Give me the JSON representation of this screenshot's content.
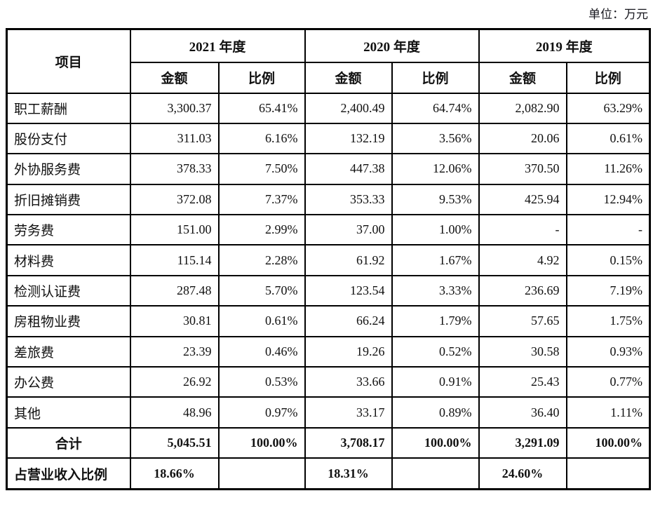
{
  "unit_label": "单位：万元",
  "table": {
    "item_header": "项目",
    "year_headers": [
      "2021 年度",
      "2020 年度",
      "2019 年度"
    ],
    "sub_headers": [
      "金额",
      "比例",
      "金额",
      "比例",
      "金额",
      "比例"
    ],
    "rows": [
      {
        "type": "normal",
        "label": "职工薪酬",
        "values": [
          "3,300.37",
          "65.41%",
          "2,400.49",
          "64.74%",
          "2,082.90",
          "63.29%"
        ]
      },
      {
        "type": "normal",
        "label": "股份支付",
        "values": [
          "311.03",
          "6.16%",
          "132.19",
          "3.56%",
          "20.06",
          "0.61%"
        ]
      },
      {
        "type": "normal",
        "label": "外协服务费",
        "values": [
          "378.33",
          "7.50%",
          "447.38",
          "12.06%",
          "370.50",
          "11.26%"
        ]
      },
      {
        "type": "normal",
        "label": "折旧摊销费",
        "values": [
          "372.08",
          "7.37%",
          "353.33",
          "9.53%",
          "425.94",
          "12.94%"
        ]
      },
      {
        "type": "normal",
        "label": "劳务费",
        "values": [
          "151.00",
          "2.99%",
          "37.00",
          "1.00%",
          "-",
          "-"
        ]
      },
      {
        "type": "normal",
        "label": "材料费",
        "values": [
          "115.14",
          "2.28%",
          "61.92",
          "1.67%",
          "4.92",
          "0.15%"
        ]
      },
      {
        "type": "normal",
        "label": "检测认证费",
        "values": [
          "287.48",
          "5.70%",
          "123.54",
          "3.33%",
          "236.69",
          "7.19%"
        ]
      },
      {
        "type": "normal",
        "label": "房租物业费",
        "values": [
          "30.81",
          "0.61%",
          "66.24",
          "1.79%",
          "57.65",
          "1.75%"
        ]
      },
      {
        "type": "normal",
        "label": "差旅费",
        "values": [
          "23.39",
          "0.46%",
          "19.26",
          "0.52%",
          "30.58",
          "0.93%"
        ]
      },
      {
        "type": "normal",
        "label": "办公费",
        "values": [
          "26.92",
          "0.53%",
          "33.66",
          "0.91%",
          "25.43",
          "0.77%"
        ]
      },
      {
        "type": "normal",
        "label": "其他",
        "values": [
          "48.96",
          "0.97%",
          "33.17",
          "0.89%",
          "36.40",
          "1.11%"
        ]
      },
      {
        "type": "total",
        "label": "合计",
        "values": [
          "5,045.51",
          "100.00%",
          "3,708.17",
          "100.00%",
          "3,291.09",
          "100.00%"
        ]
      },
      {
        "type": "ratio",
        "label": "占营业收入比例",
        "values": [
          "18.66%",
          "",
          "18.31%",
          "",
          "24.60%",
          ""
        ]
      }
    ]
  },
  "colors": {
    "text": "#111111",
    "border": "#000000",
    "background": "#ffffff"
  }
}
